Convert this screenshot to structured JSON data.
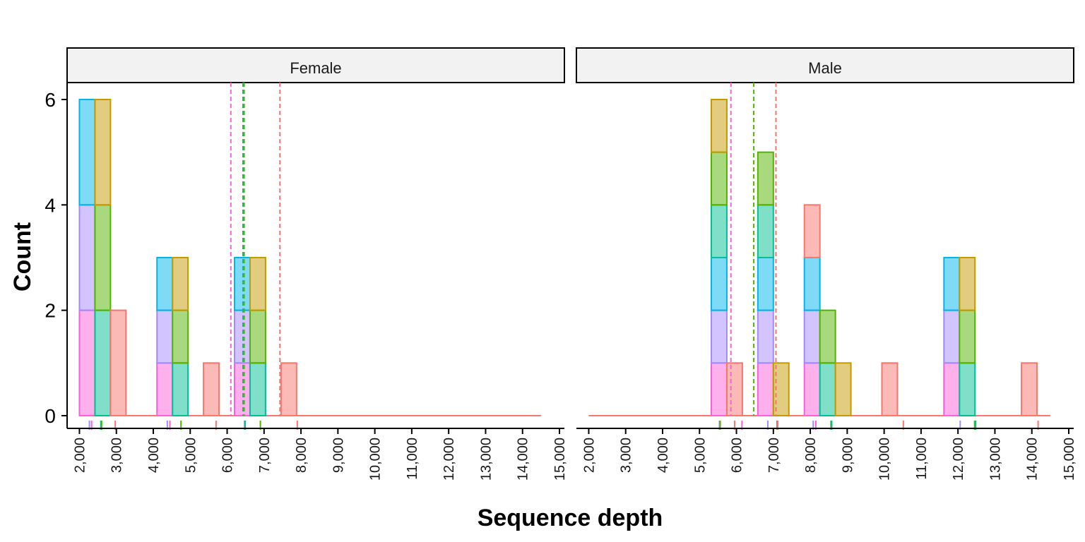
{
  "chart_data": {
    "type": "bar",
    "subtype": "faceted stacked histogram",
    "xlabel": "Sequence depth",
    "ylabel": "Count",
    "xlim": [
      1800,
      15000
    ],
    "ylim": [
      0,
      6.3
    ],
    "xticks": [
      2000,
      3000,
      4000,
      5000,
      6000,
      7000,
      8000,
      9000,
      10000,
      11000,
      12000,
      13000,
      14000,
      15000
    ],
    "xtick_labels": [
      "2,000",
      "3,000",
      "4,000",
      "5,000",
      "6,000",
      "7,000",
      "8,000",
      "9,000",
      "10,000",
      "11,000",
      "12,000",
      "13,000",
      "14,000",
      "15,000"
    ],
    "yticks": [
      0,
      2,
      4,
      6
    ],
    "ytick_labels": [
      "0",
      "2",
      "4",
      "6"
    ],
    "bin_width": 420,
    "groups": [
      {
        "key": "red",
        "fill": "#F8766D"
      },
      {
        "key": "olive",
        "fill": "#C49A00"
      },
      {
        "key": "green",
        "fill": "#53B400"
      },
      {
        "key": "teal",
        "fill": "#00C094"
      },
      {
        "key": "blue",
        "fill": "#00B6EB"
      },
      {
        "key": "purple",
        "fill": "#A58AFF"
      },
      {
        "key": "pink",
        "fill": "#FB61D7"
      }
    ],
    "panels": [
      {
        "label": "Female",
        "baseline": [
          2000,
          14500
        ],
        "bars": [
          {
            "x": 2000,
            "stack": [
              [
                "pink",
                2
              ],
              [
                "purple",
                2
              ],
              [
                "blue",
                2
              ]
            ]
          },
          {
            "x": 2420,
            "stack": [
              [
                "teal",
                2
              ],
              [
                "green",
                2
              ],
              [
                "olive",
                2
              ]
            ]
          },
          {
            "x": 2840,
            "stack": [
              [
                "red",
                2
              ]
            ]
          },
          {
            "x": 4100,
            "stack": [
              [
                "pink",
                1
              ],
              [
                "purple",
                1
              ],
              [
                "blue",
                1
              ]
            ]
          },
          {
            "x": 4520,
            "stack": [
              [
                "teal",
                1
              ],
              [
                "green",
                1
              ],
              [
                "olive",
                1
              ]
            ]
          },
          {
            "x": 5360,
            "stack": [
              [
                "red",
                1
              ]
            ]
          },
          {
            "x": 6200,
            "stack": [
              [
                "pink",
                1
              ],
              [
                "purple",
                1
              ],
              [
                "blue",
                1
              ]
            ]
          },
          {
            "x": 6620,
            "stack": [
              [
                "teal",
                1
              ],
              [
                "green",
                1
              ],
              [
                "olive",
                1
              ]
            ]
          },
          {
            "x": 7460,
            "stack": [
              [
                "red",
                1
              ]
            ]
          }
        ],
        "vlines": [
          {
            "group": "pink",
            "x": 6100
          },
          {
            "group": "teal",
            "x": 6430
          },
          {
            "group": "green",
            "x": 6460
          },
          {
            "group": "red",
            "x": 7430
          }
        ],
        "rug": [
          {
            "group": "purple",
            "x": 2270
          },
          {
            "group": "pink",
            "x": 2330
          },
          {
            "group": "teal",
            "x": 2580
          },
          {
            "group": "green",
            "x": 2600
          },
          {
            "group": "red",
            "x": 2970
          },
          {
            "group": "purple",
            "x": 4380
          },
          {
            "group": "pink",
            "x": 4450
          },
          {
            "group": "green",
            "x": 4750
          },
          {
            "group": "red",
            "x": 5700
          },
          {
            "group": "purple",
            "x": 6470
          },
          {
            "group": "teal",
            "x": 6490
          },
          {
            "group": "green",
            "x": 6900
          },
          {
            "group": "red",
            "x": 7900
          }
        ]
      },
      {
        "label": "Male",
        "baseline": [
          2000,
          14500
        ],
        "bars": [
          {
            "x": 5320,
            "stack": [
              [
                "pink",
                1
              ],
              [
                "purple",
                1
              ],
              [
                "blue",
                1
              ],
              [
                "teal",
                1
              ],
              [
                "green",
                1
              ],
              [
                "olive",
                1
              ]
            ]
          },
          {
            "x": 5740,
            "stack": [
              [
                "red",
                1
              ]
            ]
          },
          {
            "x": 6580,
            "stack": [
              [
                "pink",
                1
              ],
              [
                "purple",
                1
              ],
              [
                "blue",
                1
              ],
              [
                "teal",
                1
              ],
              [
                "green",
                1
              ]
            ]
          },
          {
            "x": 7000,
            "stack": [
              [
                "olive",
                1
              ]
            ]
          },
          {
            "x": 7840,
            "stack": [
              [
                "pink",
                1
              ],
              [
                "purple",
                1
              ],
              [
                "blue",
                1
              ],
              [
                "red",
                1
              ]
            ]
          },
          {
            "x": 8260,
            "stack": [
              [
                "teal",
                1
              ],
              [
                "green",
                1
              ]
            ]
          },
          {
            "x": 8680,
            "stack": [
              [
                "olive",
                1
              ]
            ]
          },
          {
            "x": 9940,
            "stack": [
              [
                "red",
                1
              ]
            ]
          },
          {
            "x": 11620,
            "stack": [
              [
                "pink",
                1
              ],
              [
                "purple",
                1
              ],
              [
                "blue",
                1
              ]
            ]
          },
          {
            "x": 12040,
            "stack": [
              [
                "teal",
                1
              ],
              [
                "green",
                1
              ],
              [
                "olive",
                1
              ]
            ]
          },
          {
            "x": 13720,
            "stack": [
              [
                "red",
                1
              ]
            ]
          }
        ],
        "vlines": [
          {
            "group": "pink",
            "x": 5850
          },
          {
            "group": "green",
            "x": 6470
          },
          {
            "group": "red",
            "x": 7070
          }
        ],
        "rug": [
          {
            "group": "purple",
            "x": 5540
          },
          {
            "group": "green",
            "x": 5560
          },
          {
            "group": "red",
            "x": 5950
          },
          {
            "group": "pink",
            "x": 6150
          },
          {
            "group": "purple",
            "x": 6850
          },
          {
            "group": "green",
            "x": 7100
          },
          {
            "group": "red",
            "x": 7120
          },
          {
            "group": "purple",
            "x": 8080
          },
          {
            "group": "pink",
            "x": 8150
          },
          {
            "group": "green",
            "x": 8560
          },
          {
            "group": "teal",
            "x": 8580
          },
          {
            "group": "red",
            "x": 10520
          },
          {
            "group": "purple",
            "x": 12060
          },
          {
            "group": "green",
            "x": 12450
          },
          {
            "group": "teal",
            "x": 12480
          },
          {
            "group": "red",
            "x": 14170
          }
        ]
      }
    ],
    "grid": false,
    "legend": "none"
  }
}
